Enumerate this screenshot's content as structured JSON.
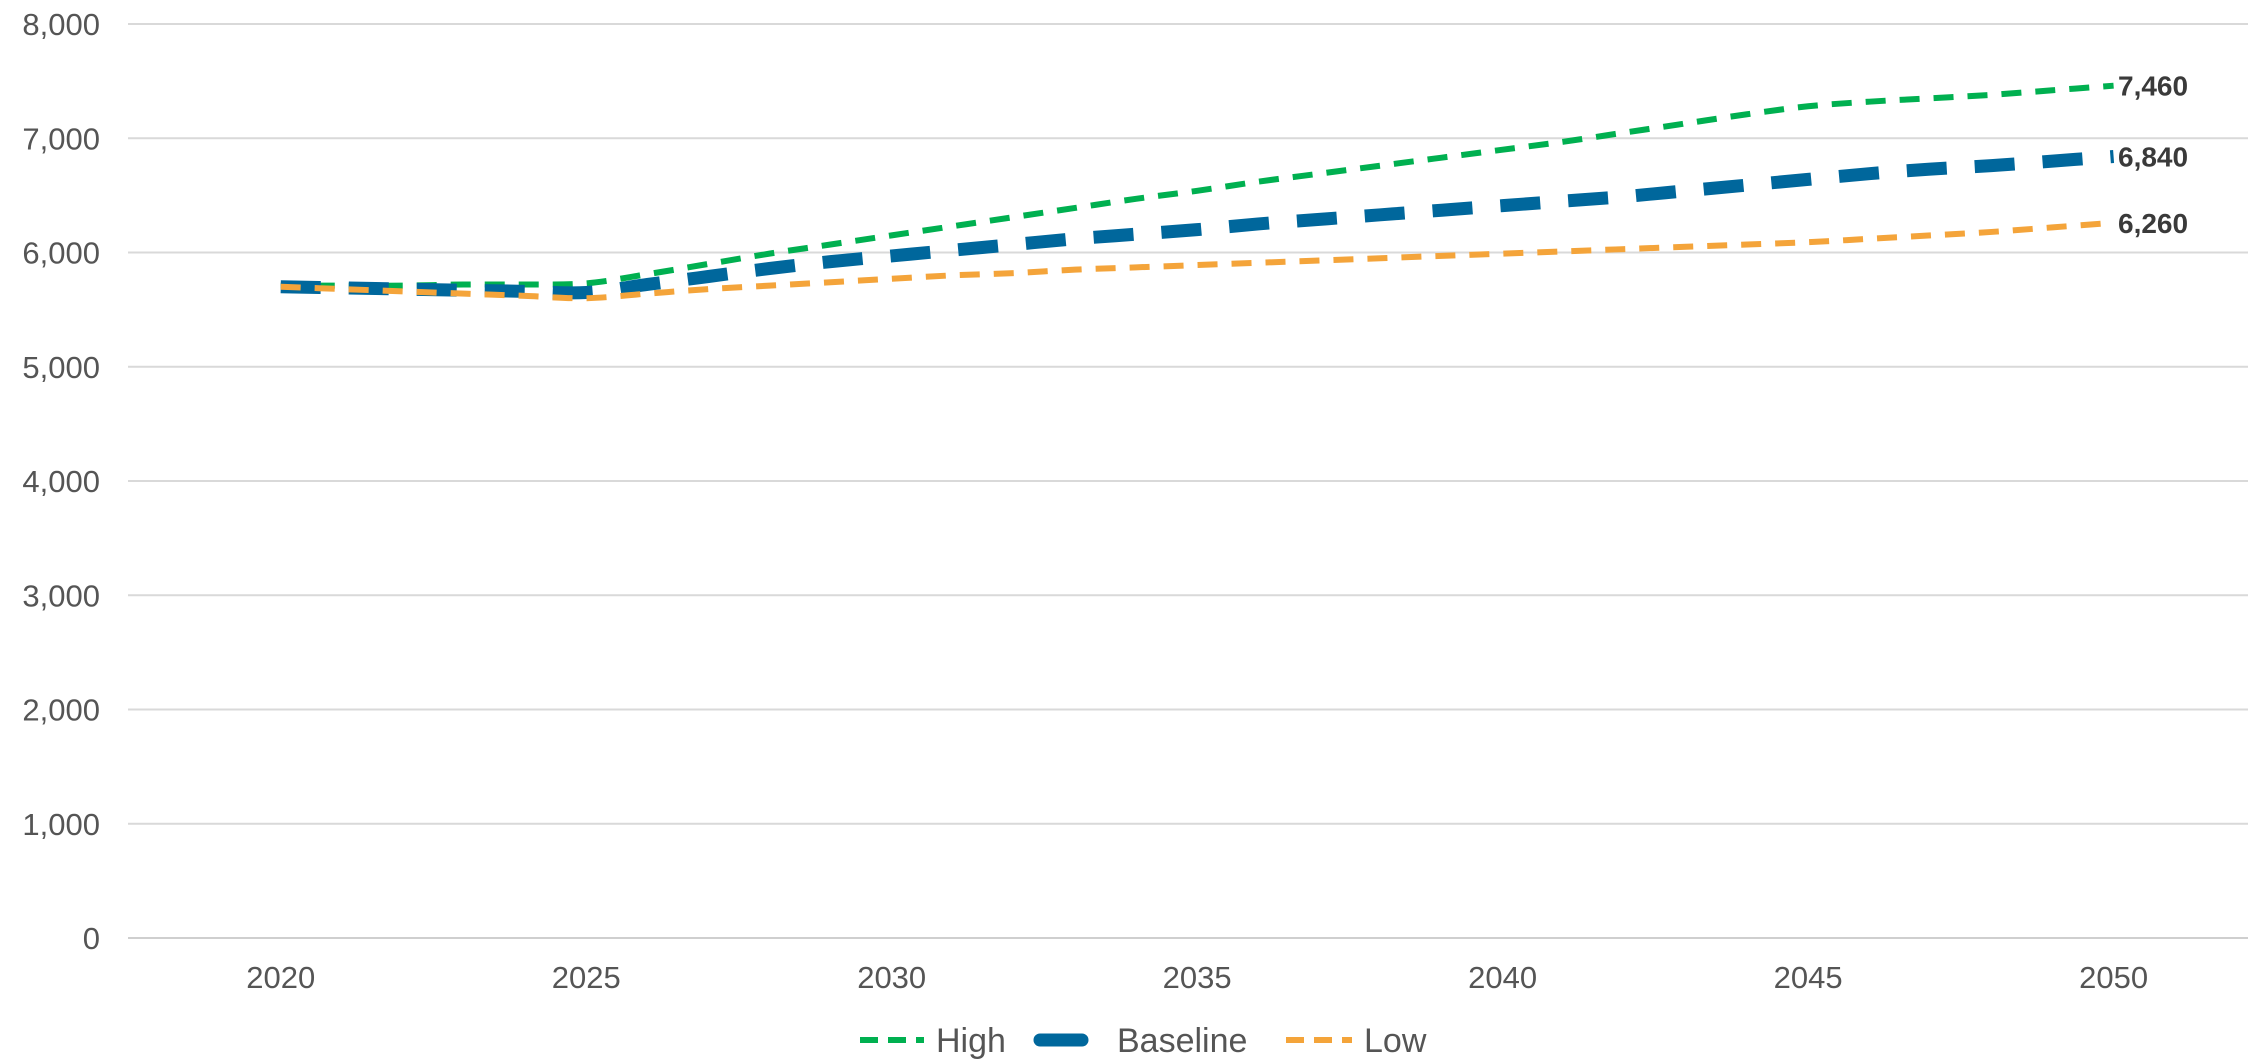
{
  "chart_data": {
    "type": "line",
    "title": "",
    "xlabel": "",
    "ylabel": "",
    "x": [
      2020,
      2021,
      2022,
      2023,
      2024,
      2025,
      2026,
      2027,
      2028,
      2029,
      2030,
      2031,
      2032,
      2033,
      2034,
      2035,
      2036,
      2037,
      2038,
      2039,
      2040,
      2041,
      2042,
      2043,
      2044,
      2045,
      2046,
      2047,
      2048,
      2049,
      2050
    ],
    "x_ticks": [
      "2020",
      "2025",
      "2030",
      "2035",
      "2040",
      "2045",
      "2050"
    ],
    "xlim": [
      2017.5,
      2052.2
    ],
    "y_ticks": [
      "0",
      "1,000",
      "2,000",
      "3,000",
      "4,000",
      "5,000",
      "6,000",
      "7,000",
      "8,000"
    ],
    "ylim": [
      0,
      8000
    ],
    "grid": "horizontal",
    "legend_position": "bottom",
    "series": [
      {
        "name": "High",
        "color": "#00b050",
        "style": "dashed-thin",
        "end_label": "7,460",
        "values": [
          5710,
          5710,
          5710,
          5720,
          5720,
          5730,
          5810,
          5900,
          5990,
          6070,
          6150,
          6230,
          6310,
          6390,
          6470,
          6540,
          6620,
          6690,
          6760,
          6830,
          6900,
          6970,
          7050,
          7130,
          7210,
          7280,
          7320,
          7350,
          7380,
          7420,
          7460
        ]
      },
      {
        "name": "Baseline",
        "color": "#00679c",
        "style": "dashed-thick",
        "end_label": "6,840",
        "values": [
          5700,
          5690,
          5680,
          5670,
          5660,
          5650,
          5720,
          5790,
          5860,
          5920,
          5970,
          6020,
          6070,
          6120,
          6160,
          6200,
          6250,
          6290,
          6330,
          6370,
          6410,
          6450,
          6490,
          6540,
          6590,
          6640,
          6690,
          6730,
          6760,
          6800,
          6840
        ]
      },
      {
        "name": "Low",
        "color": "#f4a43a",
        "style": "dashed-thin",
        "end_label": "6,260",
        "values": [
          5700,
          5680,
          5660,
          5640,
          5620,
          5600,
          5640,
          5680,
          5710,
          5740,
          5770,
          5800,
          5820,
          5850,
          5870,
          5890,
          5910,
          5930,
          5950,
          5970,
          5990,
          6010,
          6030,
          6050,
          6070,
          6090,
          6120,
          6150,
          6180,
          6220,
          6260
        ]
      }
    ]
  }
}
